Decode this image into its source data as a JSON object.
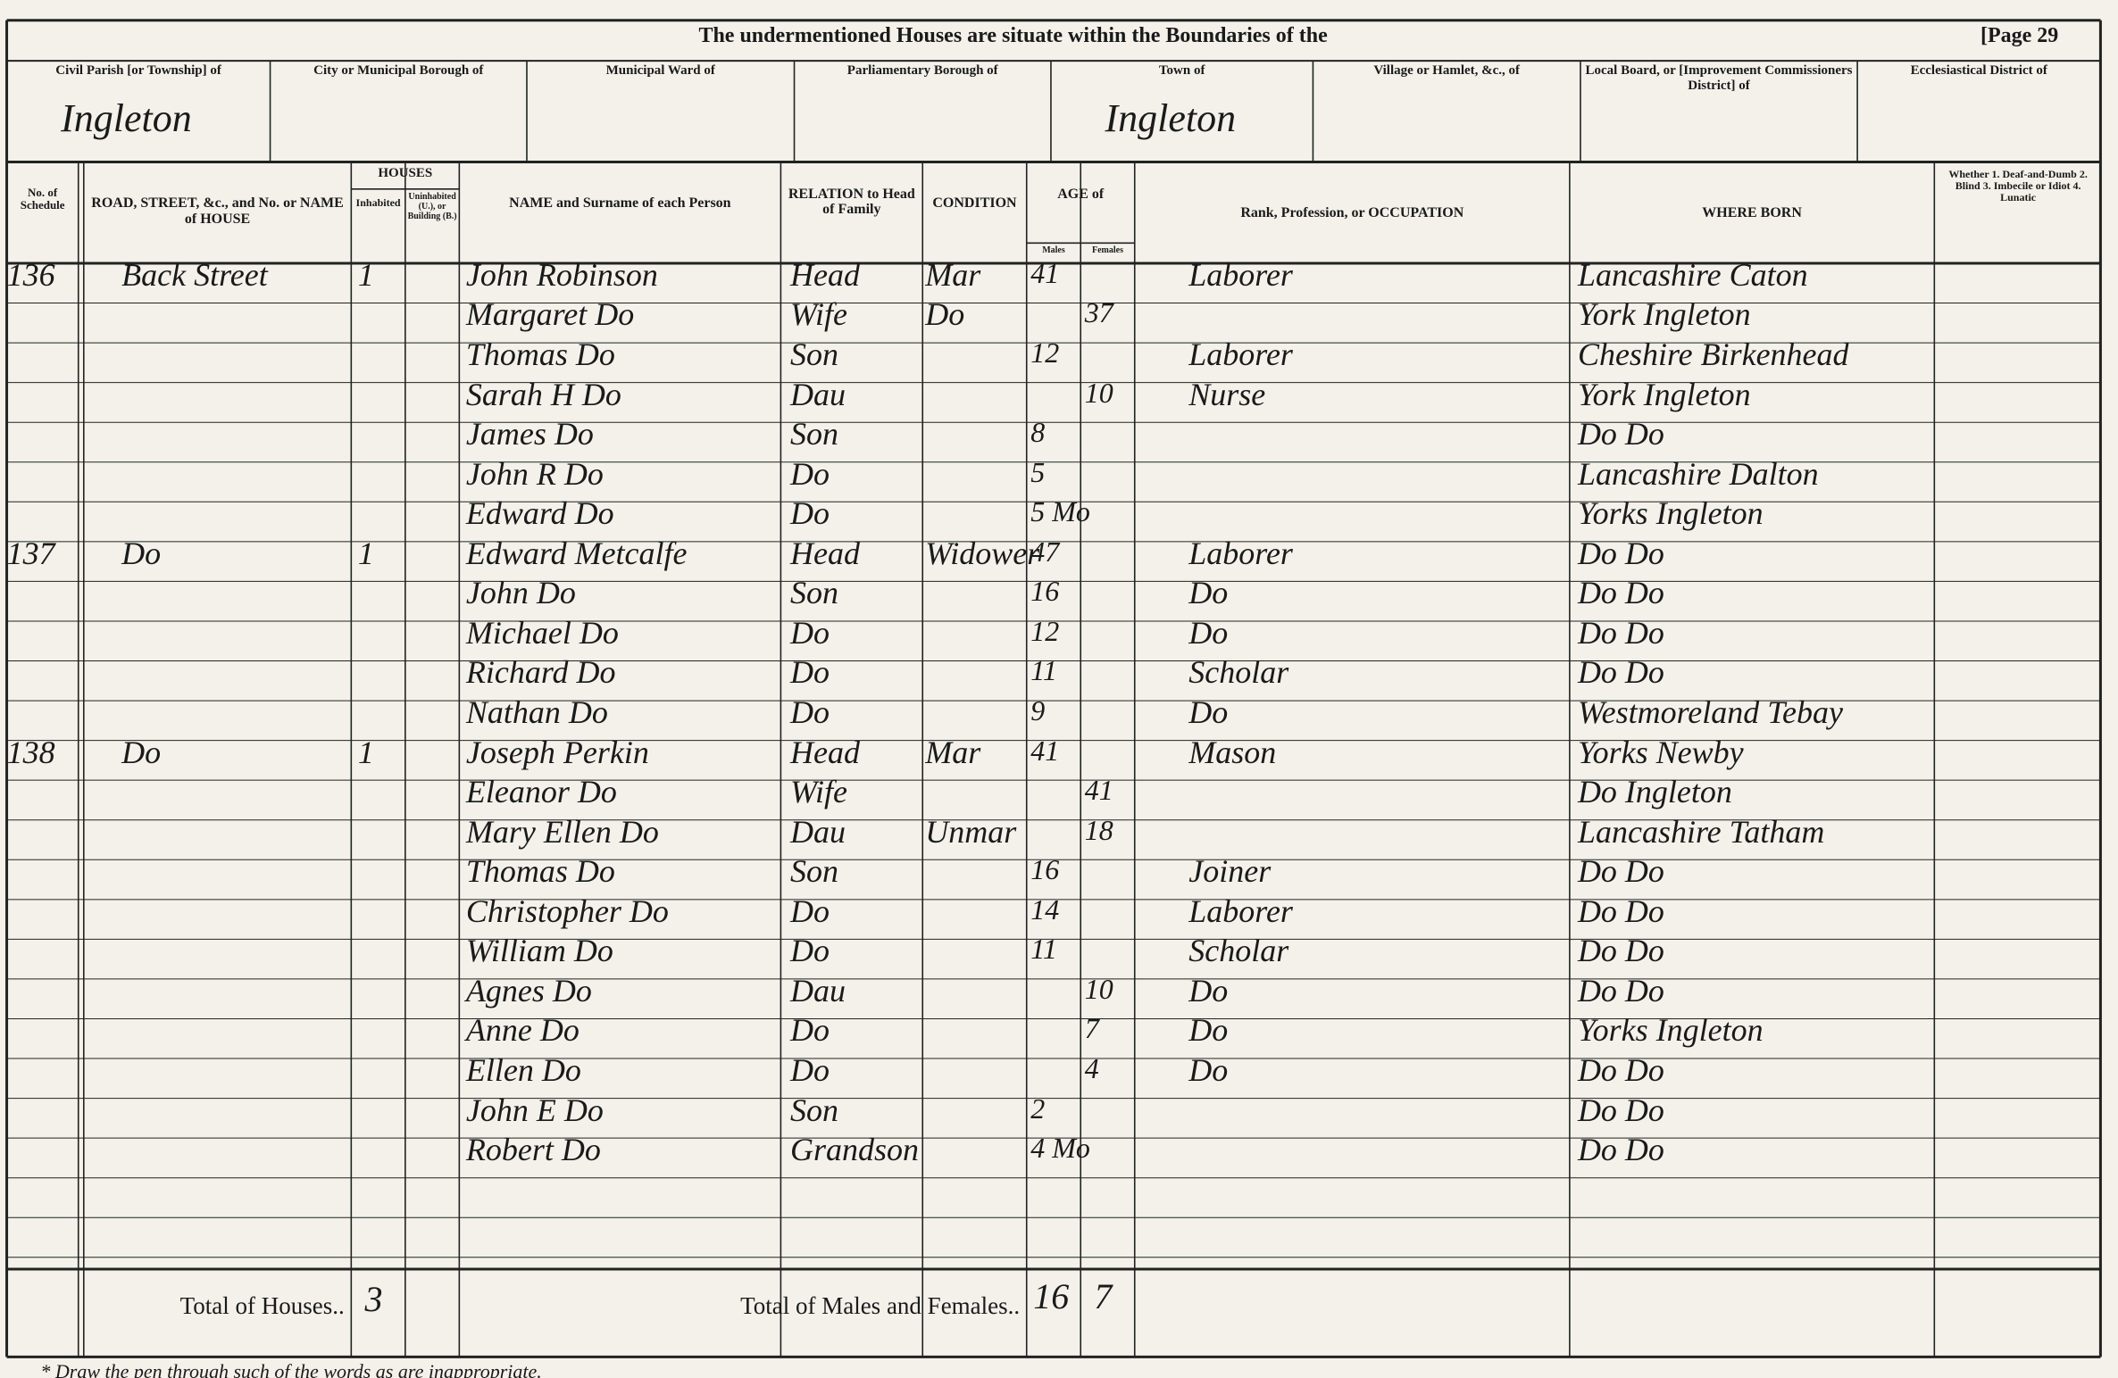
{
  "header": {
    "title": "The undermentioned Houses are situate within the Boundaries of the",
    "page": "[Page 29"
  },
  "boundaries": [
    {
      "label": "Civil Parish [or Township] of",
      "value": "Ingleton"
    },
    {
      "label": "City or Municipal Borough of"
    },
    {
      "label": "Municipal Ward of"
    },
    {
      "label": "Parliamentary Borough of"
    },
    {
      "label": "Town of",
      "value": "Ingleton"
    },
    {
      "label": "Village or Hamlet, &c., of"
    },
    {
      "label": "Local Board, or [Improvement Commissioners District] of"
    },
    {
      "label": "Ecclesiastical District of"
    }
  ],
  "columns": {
    "schedule": "No. of Schedule",
    "road": "ROAD, STREET, &c., and No. or NAME of HOUSE",
    "houses": "HOUSES",
    "inhabited": "Inhabited",
    "uninhabited": "Uninhabited (U.), or Building (B.)",
    "name": "NAME and Surname of each Person",
    "relation": "RELATION to Head of Family",
    "condition": "CONDITION",
    "age": "AGE of",
    "males": "Males",
    "females": "Females",
    "occupation": "Rank, Profession, or OCCUPATION",
    "born": "WHERE BORN",
    "infirmity": "Whether 1. Deaf-and-Dumb 2. Blind 3. Imbecile or Idiot 4. Lunatic"
  },
  "rows": [
    {
      "schedule": "136",
      "road": "Back Street",
      "inhabited": "1",
      "name": "John Robinson",
      "relation": "Head",
      "condition": "Mar",
      "male_age": "41",
      "occupation": "Laborer",
      "born": "Lancashire Caton"
    },
    {
      "name": "Margaret Do",
      "relation": "Wife",
      "condition": "Do",
      "female_age": "37",
      "born": "York Ingleton"
    },
    {
      "name": "Thomas Do",
      "relation": "Son",
      "male_age": "12",
      "occupation": "Laborer",
      "born": "Cheshire Birkenhead"
    },
    {
      "name": "Sarah H Do",
      "relation": "Dau",
      "female_age": "10",
      "occupation": "Nurse",
      "born": "York Ingleton"
    },
    {
      "name": "James Do",
      "relation": "Son",
      "male_age": "8",
      "born": "Do Do"
    },
    {
      "name": "John R Do",
      "relation": "Do",
      "male_age": "5",
      "born": "Lancashire Dalton"
    },
    {
      "name": "Edward Do",
      "relation": "Do",
      "male_age": "5 Mo",
      "born": "Yorks Ingleton"
    },
    {
      "schedule": "137",
      "road": "Do",
      "inhabited": "1",
      "name": "Edward Metcalfe",
      "relation": "Head",
      "condition": "Widower",
      "male_age": "47",
      "occupation": "Laborer",
      "born": "Do Do"
    },
    {
      "name": "John Do",
      "relation": "Son",
      "male_age": "16",
      "occupation": "Do",
      "born": "Do Do"
    },
    {
      "name": "Michael Do",
      "relation": "Do",
      "male_age": "12",
      "occupation": "Do",
      "born": "Do Do"
    },
    {
      "name": "Richard Do",
      "relation": "Do",
      "male_age": "11",
      "occupation": "Scholar",
      "born": "Do Do"
    },
    {
      "name": "Nathan Do",
      "relation": "Do",
      "male_age": "9",
      "occupation": "Do",
      "born": "Westmoreland Tebay"
    },
    {
      "schedule": "138",
      "road": "Do",
      "inhabited": "1",
      "name": "Joseph Perkin",
      "relation": "Head",
      "condition": "Mar",
      "male_age": "41",
      "occupation": "Mason",
      "born": "Yorks Newby"
    },
    {
      "name": "Eleanor Do",
      "relation": "Wife",
      "female_age": "41",
      "born": "Do Ingleton"
    },
    {
      "name": "Mary Ellen Do",
      "relation": "Dau",
      "condition": "Unmar",
      "female_age": "18",
      "born": "Lancashire Tatham"
    },
    {
      "name": "Thomas Do",
      "relation": "Son",
      "male_age": "16",
      "occupation": "Joiner",
      "born": "Do Do"
    },
    {
      "name": "Christopher Do",
      "relation": "Do",
      "male_age": "14",
      "occupation": "Laborer",
      "born": "Do Do"
    },
    {
      "name": "William Do",
      "relation": "Do",
      "male_age": "11",
      "occupation": "Scholar",
      "born": "Do Do"
    },
    {
      "name": "Agnes Do",
      "relation": "Dau",
      "female_age": "10",
      "occupation": "Do",
      "born": "Do Do"
    },
    {
      "name": "Anne Do",
      "relation": "Do",
      "female_age": "7",
      "occupation": "Do",
      "born": "Yorks Ingleton"
    },
    {
      "name": "Ellen Do",
      "relation": "Do",
      "female_age": "4",
      "occupation": "Do",
      "born": "Do Do"
    },
    {
      "name": "John E Do",
      "relation": "Son",
      "male_age": "2",
      "born": "Do Do"
    },
    {
      "name": "Robert Do",
      "relation": "Grandson",
      "male_age": "4 Mo",
      "born": "Do Do"
    }
  ],
  "totals": {
    "houses_label": "Total of Houses..",
    "houses": 3,
    "persons_label": "Total of Males and Females..",
    "males": 16,
    "females": 7
  },
  "footnote": "* Draw the pen through such of the words as are inappropriate."
}
